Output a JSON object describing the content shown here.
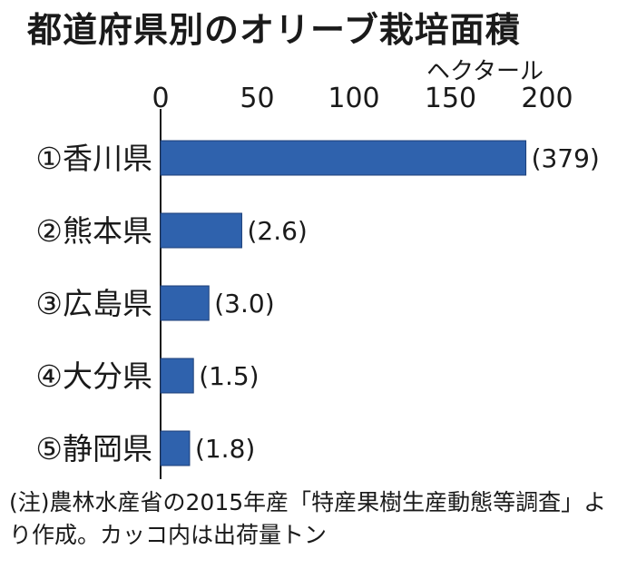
{
  "chart_data": {
    "type": "bar",
    "orientation": "horizontal",
    "title": "都道府県別のオリーブ栽培面積",
    "unit": "ヘクタール",
    "xlim": [
      0,
      200
    ],
    "x_ticks": [
      0,
      50,
      100,
      150,
      200
    ],
    "categories": [
      "①香川県",
      "②熊本県",
      "③広島県",
      "④大分県",
      "⑤静岡県"
    ],
    "values": [
      189,
      42,
      25,
      17,
      15
    ],
    "annotations": [
      "(379)",
      "(2.6)",
      "(3.0)",
      "(1.5)",
      "(1.8)"
    ],
    "bar_color": "#2f62ad",
    "grid": false
  },
  "note": "(注)農林水産省の2015年産「特産果樹生産動態等調査」より作成。カッコ内は出荷量トン"
}
